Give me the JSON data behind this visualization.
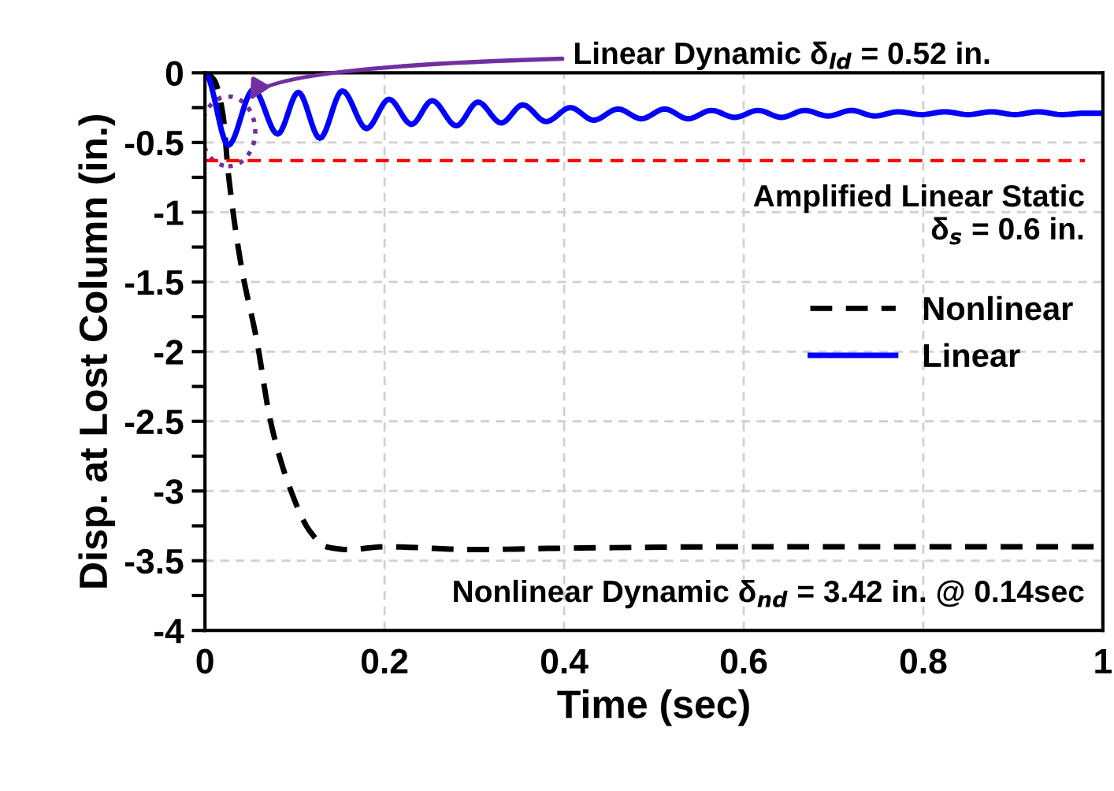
{
  "chart_data": {
    "type": "line",
    "xlabel": "Time (sec)",
    "ylabel": "Disp. at Lost Column (in.)",
    "xlim": [
      0,
      1
    ],
    "ylim": [
      -4,
      0
    ],
    "xticks": [
      0,
      0.2,
      0.4,
      0.6,
      0.8,
      1
    ],
    "yticks": [
      -4,
      -3.5,
      -3,
      -2.5,
      -2,
      -1.5,
      -1,
      -0.5,
      0
    ],
    "grid": true,
    "legend": "right",
    "line_style": "solid",
    "marker": "none",
    "series": [
      {
        "name": "Nonlinear",
        "color": "#000000",
        "line_style": "dashed",
        "x": [
          0,
          0.01,
          0.02,
          0.026,
          0.04,
          0.058,
          0.073,
          0.093,
          0.117,
          0.135,
          0.16,
          0.2,
          0.3,
          0.4,
          0.6,
          0.8,
          1.0
        ],
        "values": [
          0,
          -0.05,
          -0.3,
          -0.72,
          -1.37,
          -1.93,
          -2.5,
          -2.95,
          -3.29,
          -3.4,
          -3.42,
          -3.4,
          -3.42,
          -3.41,
          -3.4,
          -3.4,
          -3.4
        ]
      },
      {
        "name": "Linear",
        "color": "#0000ff",
        "x": [
          0,
          0.026,
          0.054,
          0.081,
          0.104,
          0.128,
          0.153,
          0.18,
          0.205,
          0.23,
          0.253,
          0.28,
          0.304,
          0.33,
          0.354,
          0.38,
          0.407,
          0.433,
          0.46,
          0.486,
          0.512,
          0.538,
          0.564,
          0.59,
          0.616,
          0.642,
          0.668,
          0.694,
          0.72,
          0.746,
          0.772,
          0.798,
          0.824,
          0.85,
          0.876,
          0.902,
          0.928,
          0.954,
          0.98,
          1.0
        ],
        "values": [
          0,
          -0.52,
          -0.12,
          -0.44,
          -0.14,
          -0.47,
          -0.13,
          -0.4,
          -0.19,
          -0.37,
          -0.2,
          -0.38,
          -0.21,
          -0.36,
          -0.23,
          -0.35,
          -0.25,
          -0.34,
          -0.26,
          -0.33,
          -0.26,
          -0.33,
          -0.27,
          -0.32,
          -0.27,
          -0.32,
          -0.27,
          -0.31,
          -0.27,
          -0.31,
          -0.28,
          -0.3,
          -0.28,
          -0.3,
          -0.28,
          -0.3,
          -0.28,
          -0.3,
          -0.29,
          -0.29
        ]
      }
    ],
    "ref_lines": [
      {
        "axis": "y",
        "value": -0.63,
        "color": "#ff0000",
        "line_style": "dashed"
      }
    ],
    "annotations": [
      {
        "text": "Linear Dynamic δ$_{ld}$ = 0.52 in.",
        "x": 0.05,
        "y": -0.2
      },
      "Amplified Linear Static\nδ$_{s}$ = 0.6 in.",
      "Nonlinear Dynamic δ$_{nd}$ = 3.42 in. @ 0.14sec"
    ]
  }
}
